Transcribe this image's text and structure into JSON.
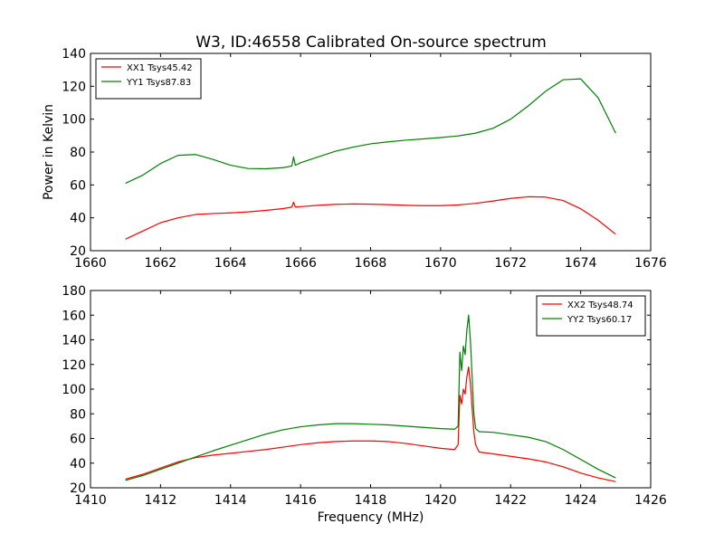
{
  "chart_data": [
    {
      "type": "line",
      "title": "W3, ID:46558 Calibrated On-source spectrum",
      "xlabel": "",
      "ylabel": "Power in Kelvin",
      "xlim": [
        1660,
        1676
      ],
      "ylim": [
        20,
        140
      ],
      "xticks": [
        1660,
        1662,
        1664,
        1666,
        1668,
        1670,
        1672,
        1674,
        1676
      ],
      "yticks": [
        20,
        40,
        60,
        80,
        100,
        120,
        140
      ],
      "grid": false,
      "legend_position": "top-left",
      "series": [
        {
          "name": "XX1 Tsys45.42",
          "color": "#ff0000",
          "x": [
            1661.0,
            1661.5,
            1662.0,
            1662.5,
            1663.0,
            1663.5,
            1664.0,
            1664.5,
            1665.0,
            1665.5,
            1665.75,
            1665.8,
            1665.85,
            1666.0,
            1666.5,
            1667.0,
            1667.5,
            1668.0,
            1668.5,
            1669.0,
            1669.5,
            1670.0,
            1670.5,
            1671.0,
            1671.5,
            1672.0,
            1672.5,
            1673.0,
            1673.5,
            1674.0,
            1674.5,
            1675.0
          ],
          "y": [
            27,
            32,
            37,
            40,
            42,
            42.6,
            43,
            43.6,
            44.5,
            45.6,
            46.5,
            49.5,
            46.5,
            46.8,
            47.6,
            48.2,
            48.4,
            48.3,
            48,
            47.6,
            47.4,
            47.4,
            47.8,
            48.8,
            50.2,
            51.8,
            52.8,
            52.6,
            50.5,
            45.5,
            38.5,
            30
          ]
        },
        {
          "name": "YY1 Tsys87.83",
          "color": "#008000",
          "x": [
            1661.0,
            1661.5,
            1662.0,
            1662.5,
            1663.0,
            1663.5,
            1664.0,
            1664.5,
            1665.0,
            1665.5,
            1665.75,
            1665.8,
            1665.85,
            1666.0,
            1666.5,
            1667.0,
            1667.5,
            1668.0,
            1668.5,
            1669.0,
            1669.5,
            1670.0,
            1670.5,
            1671.0,
            1671.5,
            1672.0,
            1672.5,
            1673.0,
            1673.5,
            1674.0,
            1674.5,
            1675.0
          ],
          "y": [
            61,
            66,
            73,
            78,
            78.5,
            75.5,
            72,
            70,
            69.8,
            70.5,
            71.5,
            77,
            72,
            73.5,
            77,
            80.5,
            83,
            85,
            86.2,
            87.2,
            88,
            88.8,
            89.8,
            91.5,
            94.5,
            100,
            108,
            117,
            124,
            124.5,
            113,
            91.5
          ]
        }
      ]
    },
    {
      "type": "line",
      "title": "",
      "xlabel": "Frequency (MHz)",
      "ylabel": "",
      "xlim": [
        1410,
        1426
      ],
      "ylim": [
        20,
        180
      ],
      "xticks": [
        1410,
        1412,
        1414,
        1416,
        1418,
        1420,
        1422,
        1424,
        1426
      ],
      "yticks": [
        20,
        40,
        60,
        80,
        100,
        120,
        140,
        160,
        180
      ],
      "grid": false,
      "legend_position": "top-right",
      "series": [
        {
          "name": "XX2 Tsys48.74",
          "color": "#ff0000",
          "x": [
            1411.0,
            1411.5,
            1412.0,
            1412.5,
            1413.0,
            1413.5,
            1414.0,
            1414.5,
            1415.0,
            1415.5,
            1416.0,
            1416.5,
            1417.0,
            1417.5,
            1418.0,
            1418.5,
            1419.0,
            1419.5,
            1420.0,
            1420.4,
            1420.5,
            1420.55,
            1420.6,
            1420.65,
            1420.7,
            1420.75,
            1420.8,
            1420.85,
            1420.9,
            1420.95,
            1421.0,
            1421.1,
            1421.5,
            1422.0,
            1422.5,
            1423.0,
            1423.5,
            1424.0,
            1424.5,
            1425.0
          ],
          "y": [
            27,
            31,
            36,
            41,
            44.5,
            46.5,
            48,
            49.5,
            51,
            53,
            55,
            56.5,
            57.5,
            58,
            58,
            57.5,
            56,
            54,
            52,
            51,
            55,
            95,
            88,
            100,
            96,
            110,
            118,
            105,
            85,
            65,
            55,
            49,
            47.5,
            45.5,
            43.5,
            41,
            37,
            32,
            28,
            25
          ]
        },
        {
          "name": "YY2 Tsys60.17",
          "color": "#008000",
          "x": [
            1411.0,
            1411.5,
            1412.0,
            1412.5,
            1413.0,
            1413.5,
            1414.0,
            1414.5,
            1415.0,
            1415.5,
            1416.0,
            1416.5,
            1417.0,
            1417.5,
            1418.0,
            1418.5,
            1419.0,
            1419.5,
            1420.0,
            1420.4,
            1420.5,
            1420.55,
            1420.6,
            1420.65,
            1420.7,
            1420.75,
            1420.8,
            1420.85,
            1420.9,
            1420.95,
            1421.0,
            1421.1,
            1421.5,
            1422.0,
            1422.5,
            1423.0,
            1423.5,
            1424.0,
            1424.5,
            1425.0
          ],
          "y": [
            26,
            30,
            35,
            40,
            45,
            50,
            54.5,
            59,
            63.5,
            67,
            69.5,
            71,
            72,
            72,
            71.5,
            71,
            70,
            69,
            68,
            67.5,
            70,
            130,
            115,
            135,
            128,
            148,
            160,
            140,
            110,
            80,
            68,
            65.5,
            65,
            63,
            61,
            57.5,
            51,
            43,
            35,
            28
          ]
        }
      ]
    }
  ]
}
